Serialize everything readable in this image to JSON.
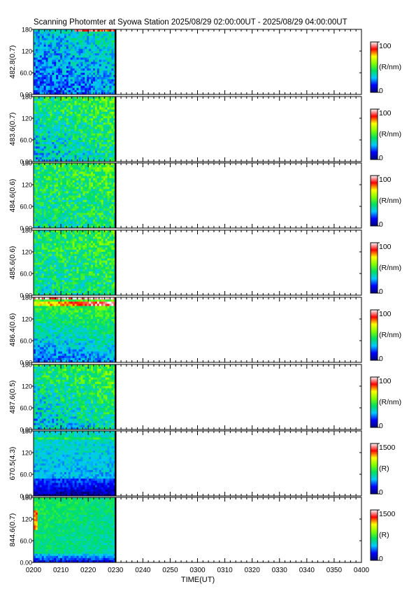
{
  "title": "Scanning Photomter at Syowa Station 2025/08/29 02:00:00UT - 2025/08/29 04:00:00UT",
  "chart_data": {
    "type": "heatmap",
    "xlabel": "TIME(UT)",
    "x_tick_labels": [
      "0200",
      "0210",
      "0220",
      "0230",
      "0240",
      "0250",
      "0300",
      "0310",
      "0320",
      "0330",
      "0340",
      "0350",
      "0400"
    ],
    "x_range_minutes": [
      0,
      120
    ],
    "data_end_minute": 30,
    "y_range": [
      0,
      180
    ],
    "y_tick_labels": [
      "0.00",
      "60.0",
      "120",
      "180"
    ],
    "colorscale": [
      "#00007a",
      "#0000ff",
      "#00c8ff",
      "#00e060",
      "#80ff00",
      "#ffff00",
      "#ff0000",
      "#ffffff"
    ],
    "panels": [
      {
        "ylabel": "482.8(0.7)",
        "cbar_max": "100",
        "cbar_min": "0",
        "cbar_unit": "(R/nm)",
        "profile": "bluish"
      },
      {
        "ylabel": "483.6(0.7)",
        "cbar_max": "100",
        "cbar_min": "0",
        "cbar_unit": "(R/nm)",
        "profile": "mixed"
      },
      {
        "ylabel": "484.6(0.6)",
        "cbar_max": "100",
        "cbar_min": "0",
        "cbar_unit": "(R/nm)",
        "profile": "green"
      },
      {
        "ylabel": "485.6(0.6)",
        "cbar_max": "100",
        "cbar_min": "0",
        "cbar_unit": "(R/nm)",
        "profile": "green"
      },
      {
        "ylabel": "486.4(0.6)",
        "cbar_max": "100",
        "cbar_min": "0",
        "cbar_unit": "(R/nm)",
        "profile": "hbeta"
      },
      {
        "ylabel": "487.6(0.5)",
        "cbar_max": "100",
        "cbar_min": "0",
        "cbar_unit": "(R/nm)",
        "profile": "mixed"
      },
      {
        "ylabel": "670.5(4.3)",
        "cbar_max": "1500",
        "cbar_min": "0",
        "cbar_unit": "(R)",
        "profile": "dark"
      },
      {
        "ylabel": "844.6(0.7)",
        "cbar_max": "1500",
        "cbar_min": "0",
        "cbar_unit": "(R)",
        "profile": "bright"
      }
    ]
  }
}
